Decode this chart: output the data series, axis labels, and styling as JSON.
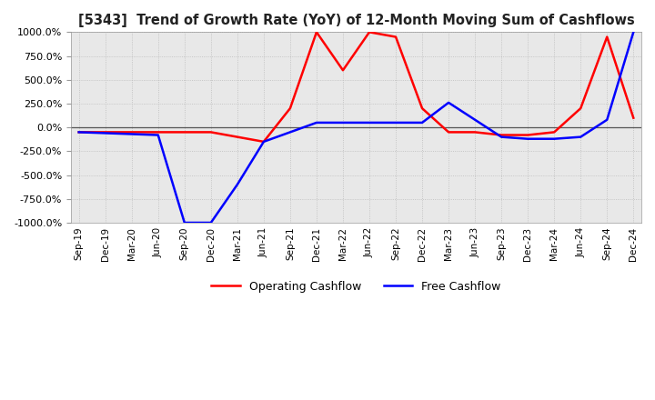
{
  "title": "[5343]  Trend of Growth Rate (YoY) of 12-Month Moving Sum of Cashflows",
  "ylim": [
    -1000,
    1000
  ],
  "yticks": [
    -1000,
    -750,
    -500,
    -250,
    0,
    250,
    500,
    750,
    1000
  ],
  "background_color": "#ffffff",
  "plot_bg_color": "#e8e8e8",
  "grid_color": "#bbbbbb",
  "line_colors": {
    "operating": "#ff0000",
    "free": "#0000ff"
  },
  "legend": {
    "operating": "Operating Cashflow",
    "free": "Free Cashflow"
  },
  "x_labels": [
    "Sep-19",
    "Dec-19",
    "Mar-20",
    "Jun-20",
    "Sep-20",
    "Dec-20",
    "Mar-21",
    "Jun-21",
    "Sep-21",
    "Dec-21",
    "Mar-22",
    "Jun-22",
    "Sep-22",
    "Dec-22",
    "Mar-23",
    "Jun-23",
    "Sep-23",
    "Dec-23",
    "Mar-24",
    "Jun-24",
    "Sep-24",
    "Dec-24"
  ],
  "operating_cashflow": [
    -50,
    -50,
    -50,
    -50,
    -50,
    -50,
    -100,
    -150,
    200,
    1000,
    600,
    1000,
    950,
    200,
    -50,
    -50,
    -80,
    -80,
    -50,
    200,
    950,
    100
  ],
  "free_cashflow": [
    -50,
    -60,
    -70,
    -80,
    -1000,
    -1000,
    -600,
    -150,
    -50,
    50,
    50,
    50,
    50,
    50,
    260,
    80,
    -100,
    -120,
    -120,
    -100,
    80,
    1000
  ]
}
